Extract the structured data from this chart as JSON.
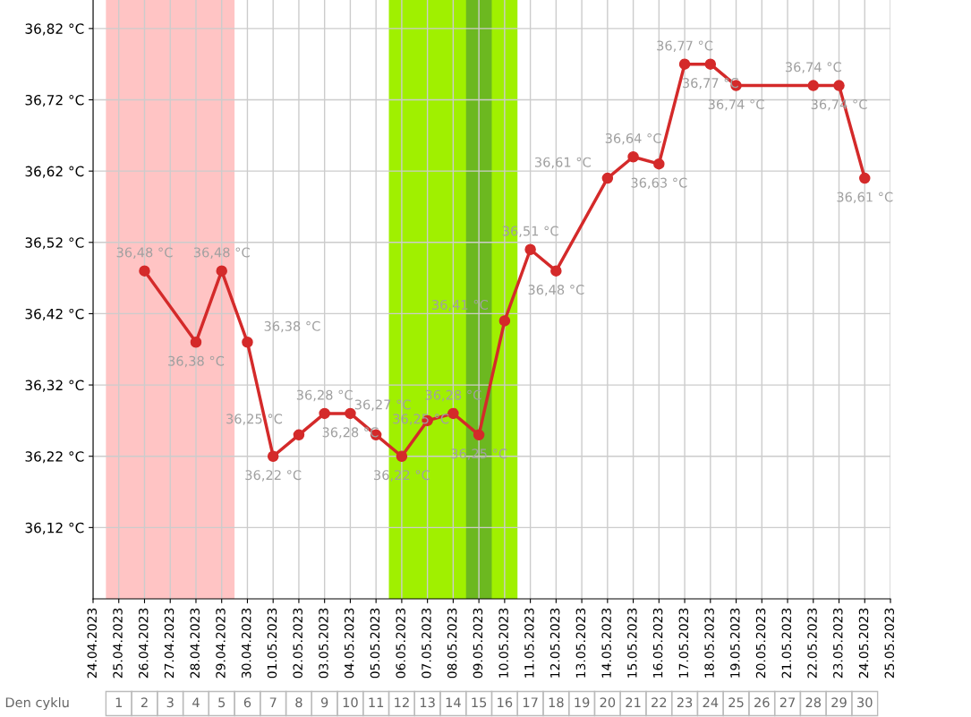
{
  "chart_data": {
    "type": "line",
    "x": [
      "2023-04-26",
      "2023-04-28",
      "2023-04-29",
      "2023-04-30",
      "2023-05-01",
      "2023-05-02",
      "2023-05-03",
      "2023-05-04",
      "2023-05-05",
      "2023-05-06",
      "2023-05-07",
      "2023-05-08",
      "2023-05-09",
      "2023-05-10",
      "2023-05-11",
      "2023-05-12",
      "2023-05-14",
      "2023-05-15",
      "2023-05-16",
      "2023-05-17",
      "2023-05-18",
      "2023-05-19",
      "2023-05-22",
      "2023-05-23",
      "2023-05-24"
    ],
    "series": [
      {
        "color": "#d42a2a",
        "marker": "circle",
        "line_style": "solid",
        "values": [
          36.48,
          36.38,
          36.48,
          36.38,
          36.22,
          36.25,
          36.28,
          36.28,
          36.25,
          36.22,
          36.27,
          36.28,
          36.25,
          36.41,
          36.51,
          36.48,
          36.61,
          36.64,
          36.63,
          36.77,
          36.77,
          36.74,
          36.74,
          36.74,
          36.61
        ],
        "value_labels": [
          "36,48 °C",
          "36,38 °C",
          "36,48 °C",
          "36,38 °C",
          "36,22 °C",
          "36,25 °C",
          "36,28 °C",
          "36,28 °C",
          "36,25 °C",
          "36,22 °C",
          "36,27 °C",
          "36,28 °C",
          "36,25 °C",
          "36,41 °C",
          "36,51 °C",
          "36,48 °C",
          "36,61 °C",
          "36,64 °C",
          "36,63 °C",
          "36,77 °C",
          "36,77 °C",
          "36,74 °C",
          "36,74 °C",
          "36,74 °C",
          "36,61 °C"
        ]
      }
    ],
    "xlim": [
      "2023-04-24",
      "2023-05-25"
    ],
    "xticks": [
      {
        "value": "2023-04-24",
        "label": "24.04.2023"
      },
      {
        "value": "2023-04-25",
        "label": "25.04.2023"
      },
      {
        "value": "2023-04-26",
        "label": "26.04.2023"
      },
      {
        "value": "2023-04-27",
        "label": "27.04.2023"
      },
      {
        "value": "2023-04-28",
        "label": "28.04.2023"
      },
      {
        "value": "2023-04-29",
        "label": "29.04.2023"
      },
      {
        "value": "2023-04-30",
        "label": "30.04.2023"
      },
      {
        "value": "2023-05-01",
        "label": "01.05.2023"
      },
      {
        "value": "2023-05-02",
        "label": "02.05.2023"
      },
      {
        "value": "2023-05-03",
        "label": "03.05.2023"
      },
      {
        "value": "2023-05-04",
        "label": "04.05.2023"
      },
      {
        "value": "2023-05-05",
        "label": "05.05.2023"
      },
      {
        "value": "2023-05-06",
        "label": "06.05.2023"
      },
      {
        "value": "2023-05-07",
        "label": "07.05.2023"
      },
      {
        "value": "2023-05-08",
        "label": "08.05.2023"
      },
      {
        "value": "2023-05-09",
        "label": "09.05.2023"
      },
      {
        "value": "2023-05-10",
        "label": "10.05.2023"
      },
      {
        "value": "2023-05-11",
        "label": "11.05.2023"
      },
      {
        "value": "2023-05-12",
        "label": "12.05.2023"
      },
      {
        "value": "2023-05-13",
        "label": "13.05.2023"
      },
      {
        "value": "2023-05-14",
        "label": "14.05.2023"
      },
      {
        "value": "2023-05-15",
        "label": "15.05.2023"
      },
      {
        "value": "2023-05-16",
        "label": "16.05.2023"
      },
      {
        "value": "2023-05-17",
        "label": "17.05.2023"
      },
      {
        "value": "2023-05-18",
        "label": "18.05.2023"
      },
      {
        "value": "2023-05-19",
        "label": "19.05.2023"
      },
      {
        "value": "2023-05-20",
        "label": "20.05.2023"
      },
      {
        "value": "2023-05-21",
        "label": "21.05.2023"
      },
      {
        "value": "2023-05-22",
        "label": "22.05.2023"
      },
      {
        "value": "2023-05-23",
        "label": "23.05.2023"
      },
      {
        "value": "2023-05-24",
        "label": "24.05.2023"
      },
      {
        "value": "2023-05-25",
        "label": "25.05.2023"
      }
    ],
    "ylim": [
      36.02,
      36.86
    ],
    "yticks": [
      {
        "value": 36.12,
        "label": "36,12 °C"
      },
      {
        "value": 36.22,
        "label": "36,22 °C"
      },
      {
        "value": 36.32,
        "label": "36,32 °C"
      },
      {
        "value": 36.42,
        "label": "36,42 °C"
      },
      {
        "value": 36.52,
        "label": "36,52 °C"
      },
      {
        "value": 36.62,
        "label": "36,62 °C"
      },
      {
        "value": 36.72,
        "label": "36,72 °C"
      },
      {
        "value": 36.82,
        "label": "36,82 °C"
      }
    ],
    "x2label": "Den cyklu",
    "x2lim": [
      "2023-04-24",
      "2023-05-25"
    ],
    "x2ticks": [
      {
        "value": "2023-04-25",
        "label": "1"
      },
      {
        "value": "2023-04-26",
        "label": "2"
      },
      {
        "value": "2023-04-27",
        "label": "3"
      },
      {
        "value": "2023-04-28",
        "label": "4"
      },
      {
        "value": "2023-04-29",
        "label": "5"
      },
      {
        "value": "2023-04-30",
        "label": "6"
      },
      {
        "value": "2023-05-01",
        "label": "7"
      },
      {
        "value": "2023-05-02",
        "label": "8"
      },
      {
        "value": "2023-05-03",
        "label": "9"
      },
      {
        "value": "2023-05-04",
        "label": "10"
      },
      {
        "value": "2023-05-05",
        "label": "11"
      },
      {
        "value": "2023-05-06",
        "label": "12"
      },
      {
        "value": "2023-05-07",
        "label": "13"
      },
      {
        "value": "2023-05-08",
        "label": "14"
      },
      {
        "value": "2023-05-09",
        "label": "15"
      },
      {
        "value": "2023-05-10",
        "label": "16"
      },
      {
        "value": "2023-05-11",
        "label": "17"
      },
      {
        "value": "2023-05-12",
        "label": "18"
      },
      {
        "value": "2023-05-13",
        "label": "19"
      },
      {
        "value": "2023-05-14",
        "label": "20"
      },
      {
        "value": "2023-05-15",
        "label": "21"
      },
      {
        "value": "2023-05-16",
        "label": "22"
      },
      {
        "value": "2023-05-17",
        "label": "23"
      },
      {
        "value": "2023-05-18",
        "label": "24"
      },
      {
        "value": "2023-05-19",
        "label": "25"
      },
      {
        "value": "2023-05-20",
        "label": "26"
      },
      {
        "value": "2023-05-21",
        "label": "27"
      },
      {
        "value": "2023-05-22",
        "label": "28"
      },
      {
        "value": "2023-05-23",
        "label": "29"
      },
      {
        "value": "2023-05-24",
        "label": "30"
      }
    ],
    "bands": [
      {
        "axis": "x",
        "from": "2023-04-24T12:00",
        "to": "2023-04-29T12:00",
        "color": "#ffc4c4"
      },
      {
        "axis": "x",
        "from": "2023-05-05T12:00",
        "to": "2023-05-10T12:00",
        "color": "#a0f000"
      },
      {
        "axis": "x",
        "from": "2023-05-08T12:00",
        "to": "2023-05-09T12:00",
        "color": "#6cb820"
      }
    ],
    "grid": true
  }
}
